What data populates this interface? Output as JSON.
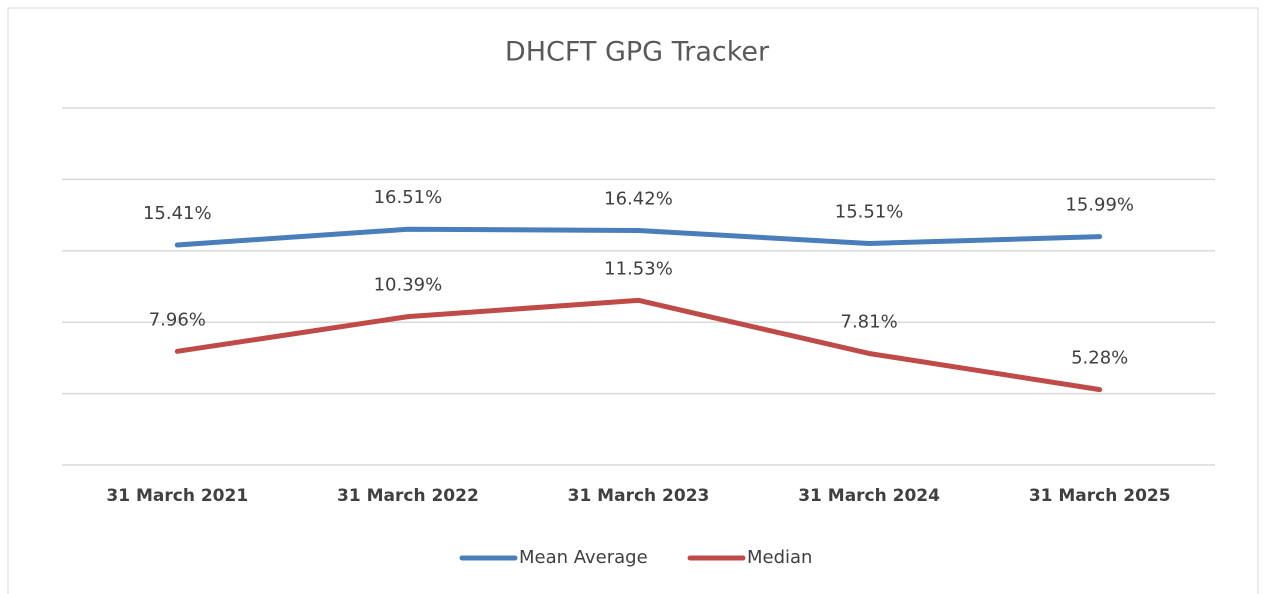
{
  "chart_data": {
    "type": "line",
    "title": "DHCFT GPG Tracker",
    "categories": [
      "31 March 2021",
      "31 March 2022",
      "31 March 2023",
      "31 March 2024",
      "31 March 2025"
    ],
    "series": [
      {
        "name": "Mean Average",
        "color": "#4a7ebb",
        "values": [
          15.41,
          16.51,
          16.42,
          15.51,
          15.99
        ],
        "value_labels": [
          "15.41%",
          "16.51%",
          "16.42%",
          "15.51%",
          "15.99%"
        ]
      },
      {
        "name": "Median",
        "color": "#be4b48",
        "values": [
          7.96,
          10.39,
          11.53,
          7.81,
          5.28
        ],
        "value_labels": [
          "7.96%",
          "10.39%",
          "11.53%",
          "7.81%",
          "5.28%"
        ]
      }
    ],
    "ylim": [
      0,
      25
    ],
    "yticks": [
      0,
      5,
      10,
      15,
      20,
      25
    ],
    "grid": true,
    "legend": "bottom"
  }
}
